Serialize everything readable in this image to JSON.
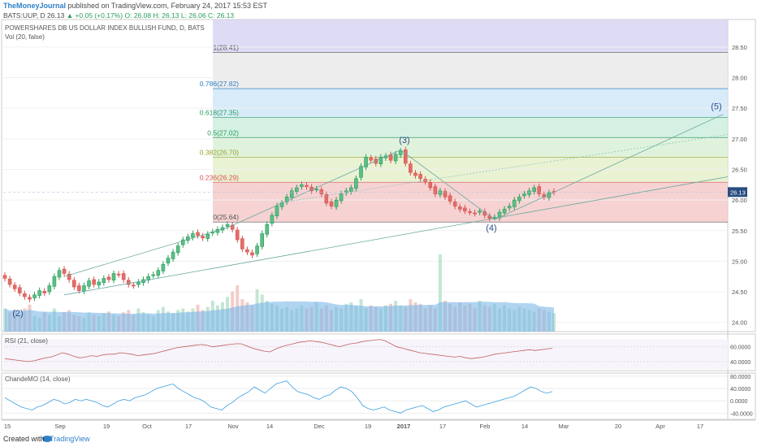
{
  "header": {
    "author": "TheMoneyJournal",
    "published": "published on TradingView.com, February 24, 2017 15:53 EST"
  },
  "symbol_bar": {
    "symbol": "BATS:UUP, D",
    "last": "26.13",
    "change": "▲ +0.05 (+0.17%)",
    "ohlc": "O: 26.08  H: 26.13  L: 26.06  C: 26.13"
  },
  "footer": {
    "created": "Created with",
    "brand": "TradingView"
  },
  "colors": {
    "up": "#2a9d5c",
    "down": "#d9534f",
    "volume": "#7cb8e8",
    "rsi": "#c06060",
    "cmo": "#3a9ee0",
    "trend": "#6aa8a0"
  },
  "chart_data": [
    {
      "type": "candlestick",
      "title": "POWERSHARES DB US DOLLAR INDEX BULLISH FUND, D, BATS",
      "volume_label": "Vol (20, false)",
      "y_ticks": [
        24.0,
        24.5,
        25.0,
        25.5,
        26.0,
        26.5,
        27.0,
        27.5,
        28.0,
        28.5
      ],
      "ylim": [
        23.85,
        28.95
      ],
      "x_ticks": [
        "15",
        "Sep",
        "19",
        "Oct",
        "17",
        "Nov",
        "14",
        "Dec",
        "19",
        "2017",
        "17",
        "Feb",
        "14",
        "Mar",
        "20",
        "Apr",
        "17"
      ],
      "last_price": "26.13",
      "fib_levels": [
        {
          "ratio": 0,
          "label": "0(25.64)",
          "price": 25.64,
          "color": "#555555"
        },
        {
          "ratio": 0.236,
          "label": "0.236(26.29)",
          "price": 26.29,
          "color": "#d9534f"
        },
        {
          "ratio": 0.382,
          "label": "0.382(26.70)",
          "price": 26.7,
          "color": "#9aa22a"
        },
        {
          "ratio": 0.5,
          "label": "0.5(27.02)",
          "price": 27.02,
          "color": "#2a9d5c"
        },
        {
          "ratio": 0.618,
          "label": "0.618(27.35)",
          "price": 27.35,
          "color": "#2a9d5c"
        },
        {
          "ratio": 0.786,
          "label": "0.786(27.82)",
          "price": 27.82,
          "color": "#2f80c8"
        },
        {
          "ratio": 1,
          "label": "1(28.41)",
          "price": 28.41,
          "color": "#555555"
        }
      ],
      "wave_labels": [
        "(2)",
        "(3)",
        "(4)",
        "(5)"
      ],
      "closes": [
        24.72,
        24.62,
        24.55,
        24.48,
        24.42,
        24.38,
        24.45,
        24.52,
        24.48,
        24.6,
        24.75,
        24.85,
        24.8,
        24.7,
        24.58,
        24.52,
        24.6,
        24.68,
        24.62,
        24.66,
        24.72,
        24.7,
        24.8,
        24.78,
        24.7,
        24.62,
        24.6,
        24.66,
        24.7,
        24.75,
        24.78,
        24.85,
        24.95,
        25.05,
        25.15,
        25.25,
        25.35,
        25.4,
        25.45,
        25.42,
        25.38,
        25.44,
        25.48,
        25.52,
        25.55,
        25.6,
        25.52,
        25.35,
        25.2,
        25.15,
        25.1,
        25.25,
        25.45,
        25.6,
        25.75,
        25.9,
        25.95,
        26.05,
        26.15,
        26.2,
        26.25,
        26.22,
        26.15,
        26.18,
        26.1,
        25.95,
        25.9,
        26.0,
        26.1,
        26.15,
        26.2,
        26.35,
        26.55,
        26.7,
        26.65,
        26.6,
        26.7,
        26.72,
        26.65,
        26.75,
        26.8,
        26.6,
        26.45,
        26.4,
        26.35,
        26.3,
        26.2,
        26.1,
        26.15,
        26.05,
        25.98,
        25.9,
        25.85,
        25.82,
        25.8,
        25.78,
        25.82,
        25.75,
        25.7,
        25.72,
        25.8,
        25.85,
        25.9,
        26.0,
        26.05,
        26.1,
        26.15,
        26.2,
        26.1,
        26.05,
        26.12,
        26.13
      ],
      "volumes": [
        0.3,
        0.25,
        0.28,
        0.22,
        0.3,
        0.35,
        0.2,
        0.18,
        0.25,
        0.22,
        0.3,
        0.2,
        0.25,
        0.28,
        0.22,
        0.2,
        0.18,
        0.25,
        0.22,
        0.2,
        0.24,
        0.26,
        0.22,
        0.2,
        0.25,
        0.28,
        0.22,
        0.3,
        0.25,
        0.22,
        0.2,
        0.28,
        0.32,
        0.26,
        0.24,
        0.28,
        0.3,
        0.26,
        0.3,
        0.35,
        0.28,
        0.32,
        0.4,
        0.34,
        0.38,
        0.45,
        0.52,
        0.6,
        0.42,
        0.38,
        0.34,
        0.55,
        0.48,
        0.4,
        0.36,
        0.34,
        0.3,
        0.32,
        0.28,
        0.3,
        0.34,
        0.3,
        0.32,
        0.38,
        0.3,
        0.34,
        0.28,
        0.32,
        0.3,
        0.36,
        0.38,
        0.34,
        0.42,
        0.3,
        0.34,
        0.32,
        0.3,
        0.34,
        0.36,
        0.4,
        0.34,
        0.32,
        0.42,
        0.38,
        0.36,
        0.3,
        0.34,
        0.3,
        1.0,
        0.4,
        0.36,
        0.32,
        0.38,
        0.34,
        0.36,
        0.3,
        0.4,
        0.34,
        0.32,
        0.36,
        0.3,
        0.34,
        0.3,
        0.28,
        0.32,
        0.3,
        0.28,
        0.26,
        0.3,
        0.28,
        0.26,
        0.24
      ]
    },
    {
      "type": "line",
      "name": "RSI (21, close)",
      "y_ticks": [
        60.0,
        40.0
      ],
      "tick_labels": [
        "60.0000",
        "40.0000"
      ],
      "ylim": [
        30,
        75
      ],
      "values": [
        44,
        43,
        42,
        41,
        40,
        41,
        43,
        45,
        46,
        49,
        52,
        50,
        47,
        45,
        46,
        48,
        47,
        49,
        50,
        50,
        52,
        51,
        50,
        48,
        49,
        50,
        51,
        53,
        55,
        57,
        59,
        60,
        61,
        62,
        63,
        62,
        60,
        61,
        62,
        63,
        64,
        64,
        61,
        58,
        56,
        54,
        53,
        57,
        60,
        62,
        64,
        66,
        67,
        68,
        67,
        66,
        64,
        62,
        60,
        62,
        64,
        65,
        67,
        68,
        69,
        70,
        68,
        64,
        60,
        58,
        56,
        54,
        52,
        51,
        50,
        49,
        48,
        47,
        46,
        47,
        45,
        44,
        45,
        46,
        48,
        50,
        51,
        52,
        53,
        54,
        55,
        56,
        55,
        56,
        57,
        58
      ]
    },
    {
      "type": "line",
      "name": "ChandeMO (14, close)",
      "y_ticks": [
        80.0,
        40.0,
        0.0,
        -40.0
      ],
      "tick_labels": [
        "80.0000",
        "40.0000",
        "0.0000",
        "-40.0000"
      ],
      "ylim": [
        -55,
        85
      ],
      "values": [
        10,
        0,
        -10,
        -20,
        -25,
        -30,
        -20,
        -15,
        -5,
        5,
        0,
        -10,
        -5,
        5,
        0,
        5,
        0,
        -5,
        -15,
        -20,
        -10,
        0,
        5,
        0,
        10,
        15,
        20,
        30,
        40,
        45,
        50,
        55,
        40,
        30,
        20,
        10,
        5,
        -5,
        -20,
        -25,
        -30,
        -15,
        -5,
        10,
        20,
        30,
        45,
        35,
        25,
        40,
        55,
        60,
        65,
        45,
        30,
        25,
        20,
        10,
        5,
        15,
        20,
        35,
        45,
        40,
        30,
        10,
        -15,
        -25,
        -30,
        -25,
        -20,
        -30,
        -35,
        -40,
        -30,
        -25,
        -20,
        -15,
        -25,
        -35,
        -30,
        -20,
        -15,
        -10,
        -5,
        0,
        -10,
        -20,
        -15,
        -10,
        -5,
        0,
        5,
        10,
        15,
        25,
        35,
        45,
        40,
        30,
        25,
        30
      ]
    }
  ]
}
